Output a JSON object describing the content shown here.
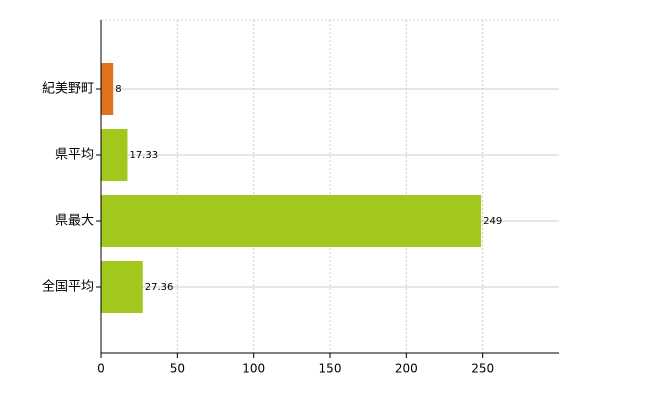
{
  "chart_data": {
    "type": "bar",
    "orientation": "horizontal",
    "categories": [
      "紀美野町",
      "県平均",
      "県最大",
      "全国平均"
    ],
    "values": [
      8,
      17.33,
      249,
      27.36
    ],
    "colors": [
      "#e0731f",
      "#a3c81d",
      "#a3c81d",
      "#a3c81d"
    ],
    "xlim": [
      0,
      300
    ],
    "xticks": [
      0,
      50,
      100,
      150,
      200,
      250
    ],
    "grid": true
  }
}
